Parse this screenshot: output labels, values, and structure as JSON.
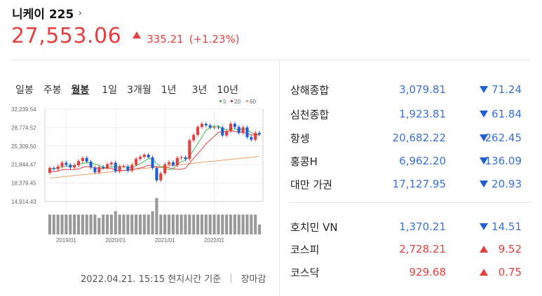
{
  "header": {
    "title": "니케이 225",
    "chevron": "›",
    "price": "27,553.06",
    "change": "335.21",
    "change_pct": "(+1.23%)",
    "direction_icon": "triangle-up-icon"
  },
  "tabs": [
    {
      "label": "일봉",
      "active": false
    },
    {
      "label": "주봉",
      "active": false
    },
    {
      "label": "월봉",
      "active": true
    },
    {
      "label": "1일",
      "active": false
    },
    {
      "label": "3개월",
      "active": false
    },
    {
      "label": "1년",
      "active": false
    },
    {
      "label": "3년",
      "active": false
    },
    {
      "label": "10년",
      "active": false
    }
  ],
  "chart_data": {
    "type": "candlestick",
    "legend": [
      "5",
      "20",
      "60"
    ],
    "legend_colors": [
      "#3cbf4a",
      "#e53e3e",
      "#f0a060"
    ],
    "y_ticks": [
      "32,239.54",
      "28,774.52",
      "25,309.50",
      "21,844.47",
      "18,379.45",
      "14,914.43"
    ],
    "y_range": [
      14914.43,
      32239.54
    ],
    "x_ticks": [
      "2019/01",
      "2020/01",
      "2021/01",
      "2022/01"
    ],
    "candles": [
      [
        20300,
        21200
      ],
      [
        21200,
        21000
      ],
      [
        21000,
        21500
      ],
      [
        21500,
        22200
      ],
      [
        22200,
        21800
      ],
      [
        21800,
        21300
      ],
      [
        21300,
        21700
      ],
      [
        21700,
        22500
      ],
      [
        22500,
        23100
      ],
      [
        23100,
        22400
      ],
      [
        22400,
        21300
      ],
      [
        21300,
        20400
      ],
      [
        20400,
        21400
      ],
      [
        21400,
        21200
      ],
      [
        21200,
        21900
      ],
      [
        21900,
        22200
      ],
      [
        22200,
        20600
      ],
      [
        20600,
        21500
      ],
      [
        21500,
        21500
      ],
      [
        21500,
        20700
      ],
      [
        20700,
        21800
      ],
      [
        21800,
        22900
      ],
      [
        22900,
        23300
      ],
      [
        23300,
        23700
      ],
      [
        23700,
        23200
      ],
      [
        23200,
        21200
      ],
      [
        21200,
        18900
      ],
      [
        18900,
        20200
      ],
      [
        20200,
        21900
      ],
      [
        21900,
        22300
      ],
      [
        22300,
        21700
      ],
      [
        21700,
        23100
      ],
      [
        23100,
        23200
      ],
      [
        23200,
        22900
      ],
      [
        22900,
        26400
      ],
      [
        26400,
        27400
      ],
      [
        27400,
        28900
      ],
      [
        28900,
        29500
      ],
      [
        29500,
        29200
      ],
      [
        29200,
        28800
      ],
      [
        28800,
        28900
      ],
      [
        28900,
        28800
      ],
      [
        28800,
        27300
      ],
      [
        27300,
        28100
      ],
      [
        28100,
        29500
      ],
      [
        29500,
        28900
      ],
      [
        28900,
        27800
      ],
      [
        27800,
        28800
      ],
      [
        28800,
        27000
      ],
      [
        27000,
        26500
      ],
      [
        26500,
        27800
      ],
      [
        27800,
        27553.06
      ]
    ],
    "volume": [
      6,
      6,
      6,
      6,
      6,
      6,
      6,
      6,
      6,
      6,
      6,
      6,
      5,
      6,
      6,
      6,
      7,
      6,
      6,
      6,
      6,
      6,
      6,
      6,
      6,
      7,
      11,
      6,
      6,
      6,
      6,
      6,
      6,
      6,
      6,
      6,
      6,
      6,
      6,
      6,
      6,
      6,
      6,
      6,
      6,
      6,
      6,
      6,
      6,
      6,
      6,
      3
    ]
  },
  "footer": {
    "timestamp": "2022.04.21. 15:15 현지시간 기준",
    "separator": "|",
    "status": "장마감"
  },
  "indices": [
    {
      "name": "상해종합",
      "value": "3,079.81",
      "direction": "down",
      "change": "71.24"
    },
    {
      "name": "심천종합",
      "value": "1,923.81",
      "direction": "down",
      "change": "61.84"
    },
    {
      "name": "항셍",
      "value": "20,682.22",
      "direction": "down",
      "change": "262.45"
    },
    {
      "name": "홍콩H",
      "value": "6,962.20",
      "direction": "down",
      "change": "136.09"
    },
    {
      "name": "대만 가권",
      "value": "17,127.95",
      "direction": "down",
      "change": "20.93"
    },
    {
      "name": "호치민 VN",
      "value": "1,370.21",
      "direction": "down",
      "change": "14.51"
    },
    {
      "name": "코스피",
      "value": "2,728.21",
      "direction": "up",
      "change": "9.52"
    },
    {
      "name": "코스닥",
      "value": "929.68",
      "direction": "up",
      "change": "0.75"
    }
  ]
}
